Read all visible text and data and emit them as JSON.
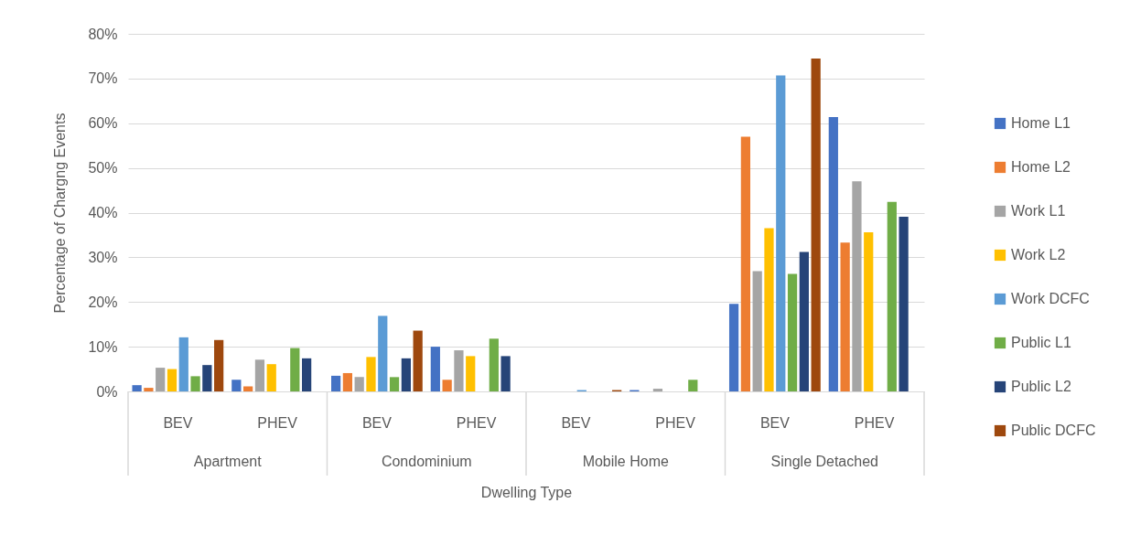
{
  "chart_data": {
    "type": "bar",
    "ylabel": "Percentage of Chargng Events",
    "xlabel": "Dwelling Type",
    "categories": [
      "BEV",
      "PHEV",
      "BEV",
      "PHEV",
      "BEV",
      "PHEV",
      "BEV",
      "PHEV"
    ],
    "annotations": [
      "Apartment",
      "Condominium",
      "Mobile Home",
      "Single Detached"
    ],
    "series": [
      {
        "name": "Home L1",
        "color": "#4472c4",
        "values": [
          1.4,
          2.6,
          3.5,
          10.0,
          null,
          0.3,
          19.6,
          61.4
        ]
      },
      {
        "name": "Home L2",
        "color": "#ed7d31",
        "values": [
          0.8,
          1.1,
          4.1,
          2.6,
          null,
          null,
          57.0,
          33.3
        ]
      },
      {
        "name": "Work L1",
        "color": "#a5a5a5",
        "values": [
          5.3,
          7.1,
          3.2,
          9.2,
          null,
          0.6,
          26.9,
          47.0
        ]
      },
      {
        "name": "Work L2",
        "color": "#ffc000",
        "values": [
          5.0,
          6.1,
          7.7,
          7.9,
          null,
          null,
          36.5,
          35.6
        ]
      },
      {
        "name": "Work DCFC",
        "color": "#5b9bd5",
        "values": [
          12.1,
          null,
          16.9,
          null,
          0.3,
          null,
          70.7,
          null
        ]
      },
      {
        "name": "Public L1",
        "color": "#70ad47",
        "values": [
          3.4,
          9.7,
          3.2,
          11.8,
          null,
          2.6,
          26.3,
          42.4
        ]
      },
      {
        "name": "Public L2",
        "color": "#264478",
        "values": [
          5.9,
          7.4,
          7.4,
          7.9,
          null,
          null,
          31.2,
          39.1
        ]
      },
      {
        "name": "Public DCFC",
        "color": "#9e480e",
        "values": [
          11.5,
          null,
          13.6,
          null,
          0.3,
          null,
          74.5,
          null
        ]
      }
    ],
    "ylim": [
      0,
      80
    ],
    "yticks": [
      {
        "value": 0,
        "label": "0%"
      },
      {
        "value": 10,
        "label": "10%"
      },
      {
        "value": 20,
        "label": "20%"
      },
      {
        "value": 30,
        "label": "30%"
      },
      {
        "value": 40,
        "label": "40%"
      },
      {
        "value": 50,
        "label": "50%"
      },
      {
        "value": 60,
        "label": "60%"
      },
      {
        "value": 70,
        "label": "70%"
      },
      {
        "value": 80,
        "label": "80%"
      }
    ],
    "grid": "y",
    "legend": "right"
  }
}
